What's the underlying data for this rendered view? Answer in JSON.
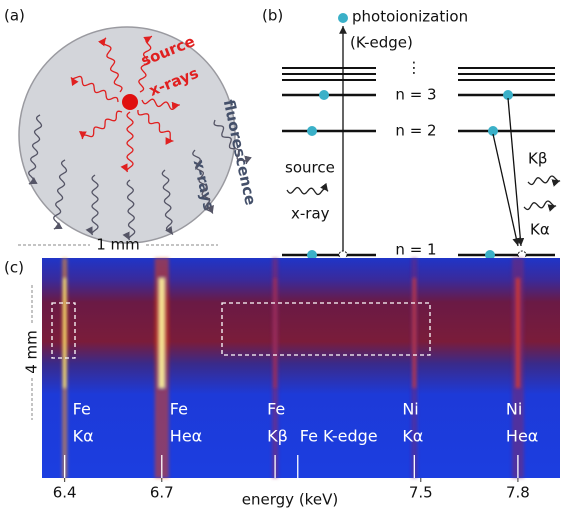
{
  "panel_a": {
    "label": "(a)",
    "source": "source",
    "source_rays": "x-rays",
    "fluorescence": "fluorescence",
    "fluorescence_rays": "x-rays",
    "scale": "1 mm"
  },
  "panel_b": {
    "label": "(b)",
    "photoionization": "photoionization",
    "k_edge": "(K-edge)",
    "dots": "⋮",
    "levels": [
      "n = 3",
      "n = 2",
      "n = 1"
    ],
    "source": "source",
    "xray": "x-ray",
    "kbeta": "Kβ",
    "kalpha": "Kα"
  },
  "panel_c": {
    "label": "(c)",
    "height": "4 mm",
    "xlabel": "energy (keV)",
    "xlim": [
      6.33,
      7.93
    ],
    "xticks": [
      6.4,
      6.7,
      7.5,
      7.8
    ],
    "lines": [
      {
        "element": "Fe",
        "line": "Kα",
        "energy": 6.4
      },
      {
        "element": "Fe",
        "line": "Heα",
        "energy": 6.7
      },
      {
        "element": "Fe",
        "line": "Kβ",
        "energy": 7.05
      },
      {
        "element": "Fe K-edge",
        "energy": 7.12
      },
      {
        "element": "Ni",
        "line": "Kα",
        "energy": 7.48
      },
      {
        "element": "Ni",
        "line": "Heα",
        "energy": 7.8
      }
    ]
  }
}
